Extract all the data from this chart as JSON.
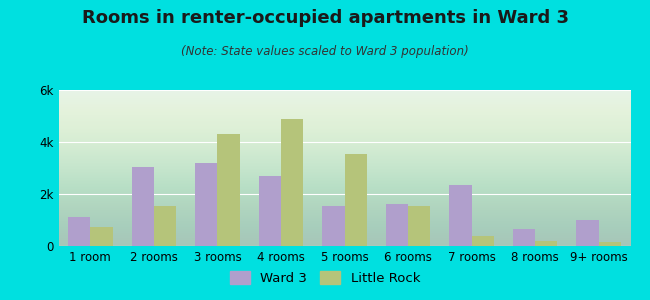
{
  "title": "Rooms in renter-occupied apartments in Ward 3",
  "subtitle": "(Note: State values scaled to Ward 3 population)",
  "categories": [
    "1 room",
    "2 rooms",
    "3 rooms",
    "4 rooms",
    "5 rooms",
    "6 rooms",
    "7 rooms",
    "8 rooms",
    "9+ rooms"
  ],
  "ward3_values": [
    1100,
    3050,
    3200,
    2700,
    1550,
    1600,
    2350,
    650,
    1000
  ],
  "littlerock_values": [
    750,
    1550,
    4300,
    4900,
    3550,
    1550,
    400,
    200,
    150
  ],
  "ward3_color": "#b09fcc",
  "littlerock_color": "#b5c47a",
  "background_outer": "#00e0e0",
  "ylim": [
    0,
    6000
  ],
  "yticks": [
    0,
    2000,
    4000,
    6000
  ],
  "ytick_labels": [
    "0",
    "2k",
    "4k",
    "6k"
  ],
  "legend_ward3": "Ward 3",
  "legend_littlerock": "Little Rock",
  "bar_width": 0.35,
  "title_fontsize": 13,
  "subtitle_fontsize": 8.5,
  "axis_fontsize": 8.5,
  "legend_fontsize": 9.5
}
